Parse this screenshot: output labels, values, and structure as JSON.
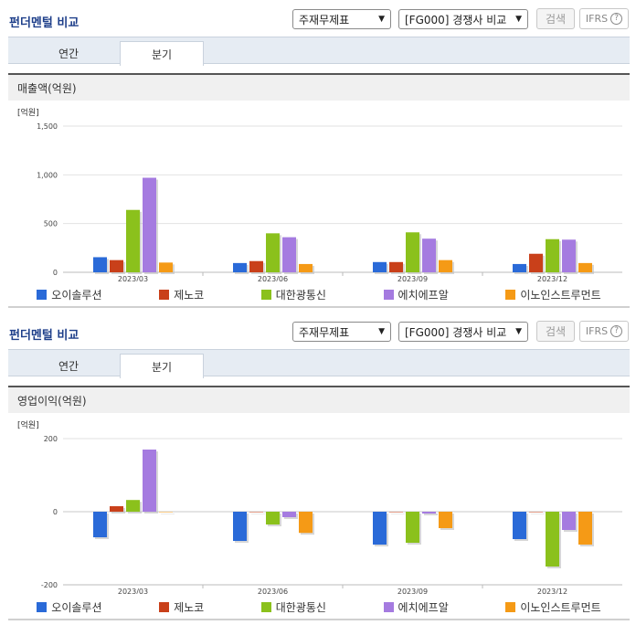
{
  "panels": [
    {
      "title": "펀더멘털 비교",
      "select_statement": "주재무제표",
      "select_compare": "[FG000] 경쟁사 비교",
      "search_label": "검색",
      "ifrs_label": "IFRS",
      "help_glyph": "?",
      "tabs": [
        {
          "label": "연간"
        },
        {
          "label": "분기"
        }
      ],
      "section_title": "매출액(억원)",
      "chart_data": {
        "type": "bar",
        "unit_label": "[억원]",
        "categories": [
          "2023/03",
          "2023/06",
          "2023/09",
          "2023/12"
        ],
        "ylim": [
          0,
          1500
        ],
        "yticks": [
          "0",
          "500",
          "1,000",
          "1,500"
        ],
        "ytick_values": [
          0,
          500,
          1000,
          1500
        ],
        "grid": true,
        "series": [
          {
            "name": "오이솔루션",
            "color": "#2a6ad8",
            "values": [
              155,
              95,
              105,
              85
            ]
          },
          {
            "name": "제노코",
            "color": "#c9401a",
            "values": [
              125,
              115,
              105,
              190
            ]
          },
          {
            "name": "대한광통신",
            "color": "#8bc11c",
            "values": [
              640,
              400,
              410,
              340
            ]
          },
          {
            "name": "에치에프알",
            "color": "#a57be0",
            "values": [
              970,
              360,
              345,
              335
            ]
          },
          {
            "name": "이노인스트루먼트",
            "color": "#f59a16",
            "values": [
              100,
              85,
              125,
              95
            ]
          }
        ]
      }
    },
    {
      "title": "펀더멘털 비교",
      "select_statement": "주재무제표",
      "select_compare": "[FG000] 경쟁사 비교",
      "search_label": "검색",
      "ifrs_label": "IFRS",
      "help_glyph": "?",
      "tabs": [
        {
          "label": "연간"
        },
        {
          "label": "분기"
        }
      ],
      "section_title": "영업이익(억원)",
      "chart_data": {
        "type": "bar",
        "unit_label": "[억원]",
        "categories": [
          "2023/03",
          "2023/06",
          "2023/09",
          "2023/12"
        ],
        "ylim": [
          -200,
          200
        ],
        "yticks": [
          "-200",
          "0",
          "200"
        ],
        "ytick_values": [
          -200,
          0,
          200
        ],
        "grid": true,
        "series": [
          {
            "name": "오이솔루션",
            "color": "#2a6ad8",
            "values": [
              -70,
              -80,
              -90,
              -75
            ]
          },
          {
            "name": "제노코",
            "color": "#c9401a",
            "values": [
              15,
              0,
              0,
              0
            ]
          },
          {
            "name": "대한광통신",
            "color": "#8bc11c",
            "values": [
              32,
              -35,
              -85,
              -150
            ]
          },
          {
            "name": "에치에프알",
            "color": "#a57be0",
            "values": [
              170,
              -15,
              -5,
              -50
            ]
          },
          {
            "name": "이노인스트루먼트",
            "color": "#f59a16",
            "values": [
              0,
              -58,
              -45,
              -90
            ]
          }
        ]
      }
    }
  ]
}
